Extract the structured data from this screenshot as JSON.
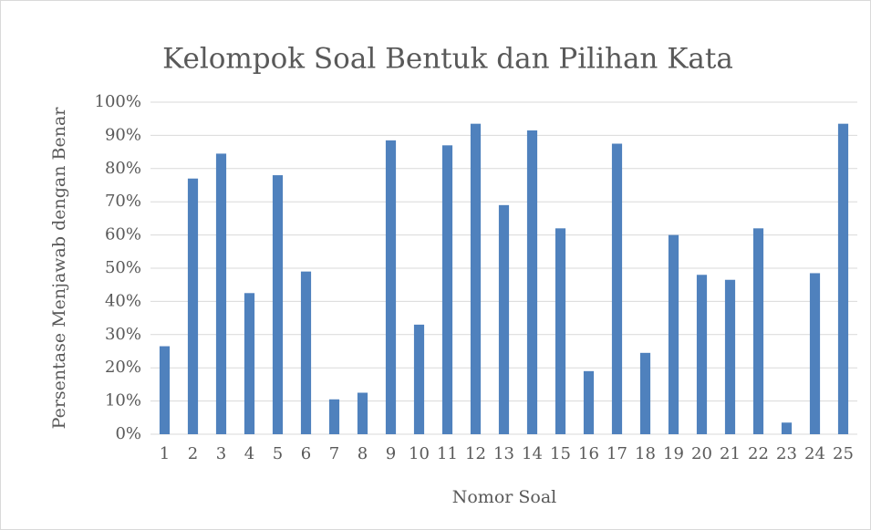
{
  "chart_data": {
    "type": "bar",
    "title": "Kelompok Soal Bentuk dan Pilihan Kata",
    "x_label": "Nomor Soal",
    "y_label": "Persentase Menjawab dengan Benar",
    "categories": [
      "1",
      "2",
      "3",
      "4",
      "5",
      "6",
      "7",
      "8",
      "9",
      "10",
      "11",
      "12",
      "13",
      "14",
      "15",
      "16",
      "17",
      "18",
      "19",
      "20",
      "21",
      "22",
      "23",
      "24",
      "25"
    ],
    "values": [
      26.5,
      77,
      84.5,
      42.5,
      78,
      49,
      10.5,
      12.5,
      88.5,
      33,
      87,
      93.5,
      69,
      91.5,
      62,
      19,
      87.5,
      24.5,
      60,
      48,
      46.5,
      62,
      3.5,
      48.5,
      93.5
    ],
    "color": "#4f81bd",
    "ylim": [
      0,
      100
    ],
    "yticks": [
      {
        "value": 0,
        "label": "0%"
      },
      {
        "value": 10,
        "label": "10%"
      },
      {
        "value": 20,
        "label": "20%"
      },
      {
        "value": 30,
        "label": "30%"
      },
      {
        "value": 40,
        "label": "40%"
      },
      {
        "value": 50,
        "label": "50%"
      },
      {
        "value": 60,
        "label": "60%"
      },
      {
        "value": 70,
        "label": "70%"
      },
      {
        "value": 80,
        "label": "80%"
      },
      {
        "value": 90,
        "label": "90%"
      },
      {
        "value": 100,
        "label": "100%"
      }
    ],
    "grid": true
  }
}
